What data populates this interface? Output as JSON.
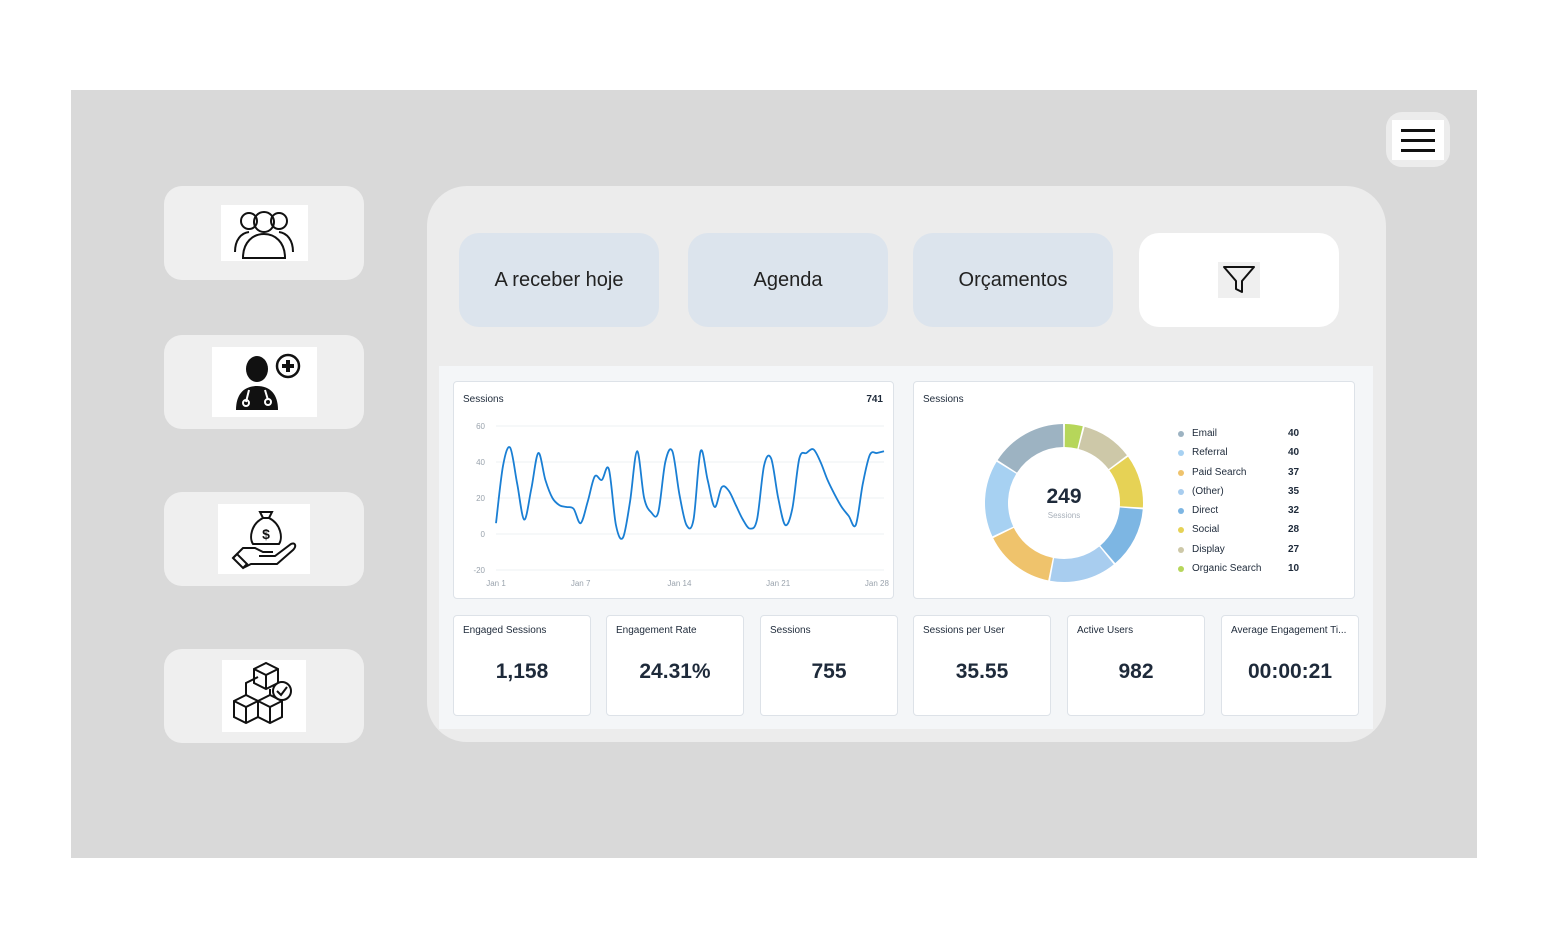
{
  "sidebar": {
    "items": [
      {
        "icon": "users-group-icon"
      },
      {
        "icon": "doctor-add-icon"
      },
      {
        "icon": "money-bag-hand-icon"
      },
      {
        "icon": "boxes-check-icon"
      }
    ]
  },
  "topbar": {
    "menu_icon": "hamburger-menu-icon"
  },
  "tabs": {
    "receivable": "A receber hoje",
    "agenda": "Agenda",
    "budgets": "Orçamentos",
    "filter_icon": "filter-icon"
  },
  "sessions_line": {
    "title": "Sessions",
    "total": "741"
  },
  "sessions_donut": {
    "title": "Sessions",
    "center_value": "249",
    "center_label": "Sessions"
  },
  "kpis": [
    {
      "label": "Engaged Sessions",
      "value": "1,158"
    },
    {
      "label": "Engagement Rate",
      "value": "24.31%"
    },
    {
      "label": "Sessions",
      "value": "755"
    },
    {
      "label": "Sessions per User",
      "value": "35.55"
    },
    {
      "label": "Active Users",
      "value": "982"
    },
    {
      "label": "Average Engagement Ti...",
      "value": "00:00:21"
    }
  ],
  "chart_data": [
    {
      "type": "line",
      "title": "Sessions",
      "x_ticks": [
        "Jan 1",
        "Jan 7",
        "Jan 14",
        "Jan 21",
        "Jan 28"
      ],
      "y_ticks": [
        "60",
        "40",
        "20",
        "0",
        "-20"
      ],
      "ylim": [
        -20,
        60
      ],
      "grid": true,
      "series": [
        {
          "color": "#1a7fd4",
          "x": [
            1,
            1.5,
            2,
            2.5,
            3,
            3.5,
            4,
            4.5,
            5,
            5.5,
            6,
            6.5,
            7,
            7.5,
            8,
            8.5,
            9,
            9.5,
            10,
            10.5,
            11,
            11.5,
            12,
            12.5,
            13,
            13.5,
            14,
            14.5,
            15,
            15.5,
            16,
            16.5,
            17,
            17.5,
            18,
            18.5,
            19,
            19.5,
            20,
            20.5,
            21,
            21.5,
            22,
            22.5,
            23,
            23.5,
            24,
            24.5,
            25,
            25.5,
            26,
            26.5,
            27,
            27.5,
            28,
            28.5
          ],
          "values": [
            6,
            38,
            48,
            28,
            8,
            25,
            45,
            30,
            20,
            16,
            15,
            14,
            6,
            18,
            32,
            30,
            36,
            5,
            -2,
            18,
            46,
            20,
            12,
            12,
            40,
            46,
            22,
            5,
            8,
            46,
            30,
            15,
            26,
            24,
            16,
            8,
            3,
            8,
            38,
            42,
            20,
            5,
            14,
            42,
            45,
            47,
            40,
            30,
            22,
            15,
            10,
            5,
            28,
            44,
            45,
            46
          ]
        }
      ]
    },
    {
      "type": "pie",
      "title": "Sessions",
      "center_value": "249",
      "center_label": "Sessions",
      "slices": [
        {
          "label": "Email",
          "value": 40,
          "color": "#9db3c2"
        },
        {
          "label": "Referral",
          "value": 40,
          "color": "#a7d1f2"
        },
        {
          "label": "Paid Search",
          "value": 37,
          "color": "#efc36c"
        },
        {
          "label": "(Other)",
          "value": 35,
          "color": "#a8cdef"
        },
        {
          "label": "Direct",
          "value": 32,
          "color": "#7db6e3"
        },
        {
          "label": "Social",
          "value": 28,
          "color": "#e6d255"
        },
        {
          "label": "Display",
          "value": 27,
          "color": "#cdc8a8"
        },
        {
          "label": "Organic Search",
          "value": 10,
          "color": "#b6d65a"
        }
      ]
    }
  ]
}
